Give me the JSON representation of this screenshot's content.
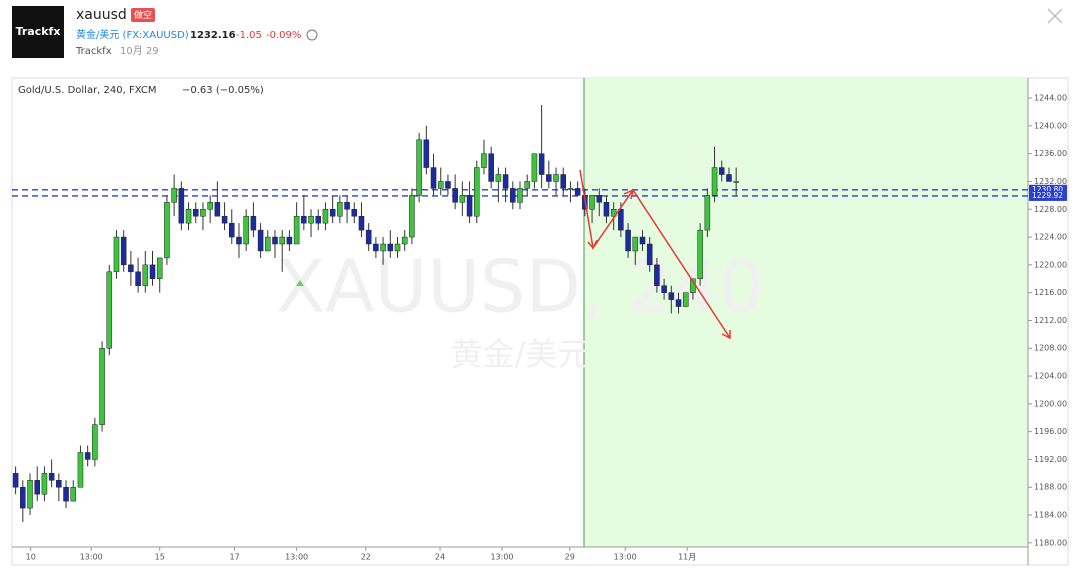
{
  "header": {
    "logo": "Trackfx",
    "symbol": "xauusd",
    "tag": "做空",
    "instrument": "黄金/美元 (FX:XAUUSD)",
    "price": "1232.16",
    "change": "-1.05",
    "change_pct": "-0.09%",
    "author": "Trackfx",
    "date": "10月 29"
  },
  "chart_data": {
    "type": "candlestick",
    "title": "Gold/U.S. Dollar, 240, FXCM",
    "subtitle": "−0.63 (−0.05%)",
    "watermark": "XAUUSD, 240",
    "watermark_sub": "黄金/美元",
    "series": {
      "up_color": "#3ec43e",
      "down_color": "#1c2ba0",
      "open": [
        1190,
        1188,
        1185,
        1189,
        1187,
        1190,
        1189,
        1188,
        1186,
        1188,
        1193,
        1192,
        1197,
        1208,
        1219,
        1224,
        1220,
        1219,
        1217,
        1220,
        1218,
        1221,
        1229,
        1231,
        1226,
        1228,
        1227,
        1228,
        1229,
        1227,
        1226,
        1224,
        1223,
        1227,
        1225,
        1222,
        1224,
        1223,
        1224,
        1223,
        1227,
        1226,
        1227,
        1226,
        1228,
        1227,
        1229,
        1228,
        1227,
        1225,
        1223,
        1222,
        1223,
        1222,
        1223,
        1224,
        1230,
        1238,
        1234,
        1231,
        1232,
        1231,
        1229,
        1230,
        1227,
        1234,
        1236,
        1232,
        1233,
        1231,
        1229,
        1231,
        1232,
        1236,
        1233,
        1232,
        1233,
        1231,
        1231,
        1230,
        1228,
        1230,
        1229,
        1227,
        1228,
        1225,
        1222,
        1224,
        1223,
        1220,
        1217,
        1216,
        1215,
        1214,
        1216,
        1218,
        1225,
        1230,
        1234,
        1233,
        1232
      ],
      "high": [
        1191,
        1189,
        1190,
        1191,
        1191,
        1192,
        1190,
        1189,
        1189,
        1194,
        1194,
        1198,
        1209,
        1220,
        1225,
        1225,
        1222,
        1221,
        1222,
        1222,
        1221,
        1230,
        1233,
        1232,
        1229,
        1229,
        1229,
        1230,
        1232,
        1229,
        1228,
        1226,
        1228,
        1229,
        1226,
        1225,
        1225,
        1225,
        1225,
        1229,
        1230,
        1228,
        1228,
        1229,
        1230,
        1230,
        1230,
        1229,
        1229,
        1226,
        1224,
        1224,
        1225,
        1224,
        1225,
        1231,
        1239,
        1240,
        1236,
        1234,
        1233,
        1233,
        1232,
        1232,
        1235,
        1238,
        1237,
        1234,
        1234,
        1232,
        1232,
        1233,
        1236,
        1243,
        1235,
        1234,
        1234,
        1232,
        1232,
        1231,
        1230,
        1231,
        1230,
        1229,
        1229,
        1226,
        1224,
        1225,
        1224,
        1221,
        1218,
        1217,
        1216,
        1216,
        1218,
        1226,
        1231,
        1237,
        1235,
        1234,
        1234
      ],
      "low": [
        1187,
        1183,
        1184,
        1186,
        1186,
        1188,
        1186,
        1185,
        1186,
        1188,
        1191,
        1191,
        1196,
        1207,
        1218,
        1219,
        1217,
        1216,
        1216,
        1217,
        1216,
        1220,
        1227,
        1225,
        1225,
        1226,
        1225,
        1226,
        1227,
        1225,
        1223,
        1221,
        1222,
        1224,
        1221,
        1222,
        1221,
        1219,
        1222,
        1223,
        1225,
        1224,
        1225,
        1225,
        1226,
        1226,
        1226,
        1226,
        1224,
        1222,
        1221,
        1220,
        1221,
        1221,
        1222,
        1223,
        1229,
        1233,
        1230,
        1230,
        1230,
        1228,
        1227,
        1226,
        1226,
        1233,
        1231,
        1229,
        1229,
        1228,
        1228,
        1230,
        1231,
        1231,
        1231,
        1230,
        1230,
        1229,
        1230,
        1227,
        1226,
        1227,
        1226,
        1225,
        1224,
        1221,
        1220,
        1222,
        1219,
        1216,
        1215,
        1213,
        1213,
        1214,
        1215,
        1217,
        1224,
        1229,
        1232,
        1232,
        1230
      ],
      "close": [
        1188,
        1185,
        1189,
        1187,
        1190,
        1189,
        1188,
        1186,
        1188,
        1193,
        1192,
        1197,
        1208,
        1219,
        1224,
        1220,
        1219,
        1217,
        1220,
        1218,
        1221,
        1229,
        1231,
        1226,
        1228,
        1227,
        1228,
        1229,
        1227,
        1226,
        1224,
        1223,
        1227,
        1225,
        1222,
        1224,
        1223,
        1224,
        1223,
        1227,
        1226,
        1227,
        1226,
        1228,
        1227,
        1229,
        1228,
        1227,
        1225,
        1223,
        1222,
        1223,
        1222,
        1223,
        1224,
        1230,
        1238,
        1234,
        1231,
        1232,
        1231,
        1229,
        1230,
        1227,
        1234,
        1236,
        1232,
        1233,
        1231,
        1229,
        1231,
        1232,
        1236,
        1233,
        1232,
        1233,
        1231,
        1231,
        1230,
        1228,
        1230,
        1229,
        1227,
        1228,
        1225,
        1222,
        1224,
        1223,
        1220,
        1217,
        1216,
        1215,
        1214,
        1216,
        1218,
        1225,
        1230,
        1234,
        1233,
        1232,
        1232
      ]
    },
    "price_lines": [
      {
        "value": 1230.8,
        "label": "1230.80",
        "color": "#2a3fcc"
      },
      {
        "value": 1229.92,
        "label": "1229.92",
        "color": "#2a3fcc"
      }
    ],
    "xlim": [
      0,
      141
    ],
    "xticks": [
      {
        "value": 2.6,
        "label": "10"
      },
      {
        "value": 11,
        "label": "13:00"
      },
      {
        "value": 20.5,
        "label": "15"
      },
      {
        "value": 30.9,
        "label": "17"
      },
      {
        "value": 39.5,
        "label": "13:00"
      },
      {
        "value": 49.1,
        "label": "22"
      },
      {
        "value": 59.4,
        "label": "24"
      },
      {
        "value": 68,
        "label": "13:00"
      },
      {
        "value": 77.4,
        "label": "29"
      },
      {
        "value": 85.1,
        "label": "13:00"
      },
      {
        "value": 93.7,
        "label": "11月"
      }
    ],
    "ylim": [
      1179.4,
      1246.6
    ],
    "yticks": [
      {
        "value": 1180,
        "label": "1180.00"
      },
      {
        "value": 1184,
        "label": "1184.00"
      },
      {
        "value": 1188,
        "label": "1188.00"
      },
      {
        "value": 1192,
        "label": "1192.00"
      },
      {
        "value": 1196,
        "label": "1196.00"
      },
      {
        "value": 1200,
        "label": "1200.00"
      },
      {
        "value": 1204,
        "label": "1204.00"
      },
      {
        "value": 1208,
        "label": "1208.00"
      },
      {
        "value": 1212,
        "label": "1212.00"
      },
      {
        "value": 1216,
        "label": "1216.00"
      },
      {
        "value": 1220,
        "label": "1220.00"
      },
      {
        "value": 1224,
        "label": "1224.00"
      },
      {
        "value": 1228,
        "label": "1228.00"
      },
      {
        "value": 1232,
        "label": "1232.00"
      },
      {
        "value": 1236,
        "label": "1236.00"
      },
      {
        "value": 1240,
        "label": "1240.00"
      },
      {
        "value": 1244,
        "label": "1244.00"
      }
    ]
  }
}
